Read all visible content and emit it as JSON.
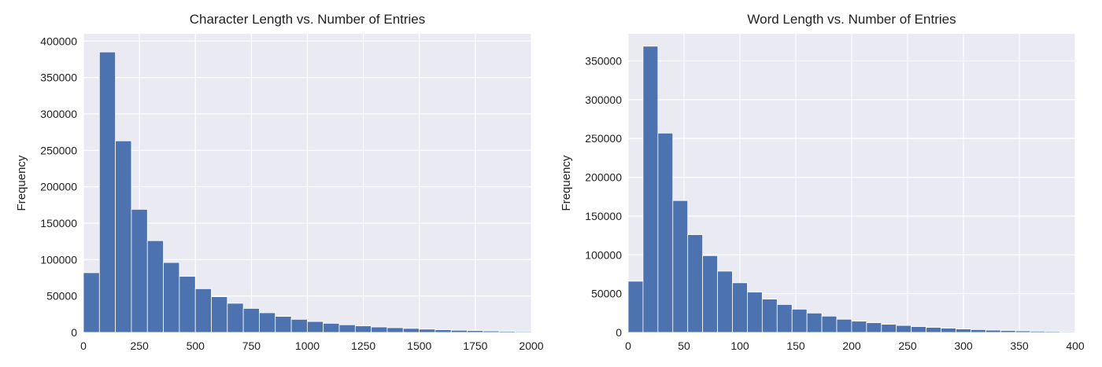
{
  "chart_data": [
    {
      "type": "bar",
      "title": "Character Length vs. Number of Entries",
      "xlabel": "",
      "ylabel": "Frequency",
      "xlim": [
        0,
        2000
      ],
      "ylim": [
        0,
        410000
      ],
      "xticks": [
        0,
        250,
        500,
        750,
        1000,
        1250,
        1500,
        1750,
        2000
      ],
      "yticks": [
        0,
        50000,
        100000,
        150000,
        200000,
        250000,
        300000,
        350000,
        400000
      ],
      "bin_width": 71.4,
      "bins_start": 0,
      "values": [
        82000,
        385000,
        263000,
        169000,
        126000,
        96000,
        77000,
        60000,
        49000,
        40000,
        33000,
        27000,
        22000,
        18000,
        15000,
        12500,
        10500,
        9000,
        7500,
        6500,
        5500,
        4500,
        3700,
        3000,
        2500,
        2000,
        1500,
        1200
      ],
      "grid": true,
      "bar_color": "#4c72b0",
      "background": "#eaeaf2"
    },
    {
      "type": "bar",
      "title": "Word Length vs. Number of Entries",
      "xlabel": "",
      "ylabel": "Frequency",
      "xlim": [
        0,
        400
      ],
      "ylim": [
        0,
        385000
      ],
      "xticks": [
        0,
        50,
        100,
        150,
        200,
        250,
        300,
        350,
        400
      ],
      "yticks": [
        0,
        50000,
        100000,
        150000,
        200000,
        250000,
        300000,
        350000
      ],
      "bin_width": 13.33,
      "bins_start": 0,
      "values": [
        66000,
        369000,
        257000,
        170000,
        126000,
        99000,
        79000,
        64000,
        52000,
        43000,
        36000,
        30000,
        25000,
        21000,
        17000,
        14500,
        12500,
        10500,
        9000,
        7500,
        6500,
        5500,
        4500,
        3700,
        3000,
        2500,
        2000,
        1600,
        1300,
        1000
      ],
      "grid": true,
      "bar_color": "#4c72b0",
      "background": "#eaeaf2"
    }
  ]
}
